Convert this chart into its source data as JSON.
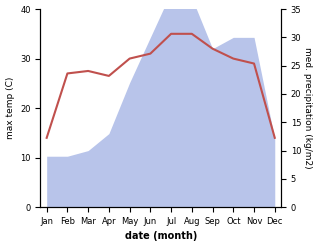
{
  "months": [
    "Jan",
    "Feb",
    "Mar",
    "Apr",
    "May",
    "Jun",
    "Jul",
    "Aug",
    "Sep",
    "Oct",
    "Nov",
    "Dec"
  ],
  "max_temp": [
    14,
    27,
    27.5,
    26.5,
    30,
    31,
    35,
    35,
    32,
    30,
    29,
    14
  ],
  "precipitation": [
    9,
    9,
    10,
    13,
    22,
    30,
    38,
    37,
    28,
    30,
    30,
    12
  ],
  "temp_color": "#c0504d",
  "precip_color_fill": "#b8c4ea",
  "temp_ylim": [
    0,
    40
  ],
  "precip_ylim": [
    0,
    35
  ],
  "xlabel": "date (month)",
  "ylabel_left": "max temp (C)",
  "ylabel_right": "med. precipitation (kg/m2)",
  "temp_yticks": [
    0,
    10,
    20,
    30,
    40
  ],
  "precip_yticks": [
    0,
    5,
    10,
    15,
    20,
    25,
    30,
    35
  ],
  "background_color": "#ffffff"
}
